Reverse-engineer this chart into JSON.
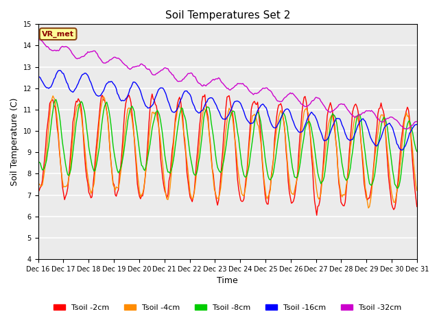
{
  "title": "Soil Temperatures Set 2",
  "xlabel": "Time",
  "ylabel": "Soil Temperature (C)",
  "ylim": [
    4.0,
    15.0
  ],
  "yticks": [
    4.0,
    5.0,
    6.0,
    7.0,
    8.0,
    9.0,
    10.0,
    11.0,
    12.0,
    13.0,
    14.0,
    15.0
  ],
  "x_labels": [
    "Dec 16",
    "Dec 17",
    "Dec 18",
    "Dec 19",
    "Dec 20",
    "Dec 21",
    "Dec 22",
    "Dec 23",
    "Dec 24",
    "Dec 25",
    "Dec 26",
    "Dec 27",
    "Dec 28",
    "Dec 29",
    "Dec 30",
    "Dec 31"
  ],
  "legend_labels": [
    "Tsoil -2cm",
    "Tsoil -4cm",
    "Tsoil -8cm",
    "Tsoil -16cm",
    "Tsoil -32cm"
  ],
  "colors": [
    "#ff0000",
    "#ff8c00",
    "#00cc00",
    "#0000ff",
    "#cc00cc"
  ],
  "annotation_text": "VR_met",
  "annotation_bg": "#ffff99",
  "annotation_border": "#8b4513",
  "annotation_text_color": "#8b0000",
  "background_color": "#ebebeb",
  "n_points": 360
}
